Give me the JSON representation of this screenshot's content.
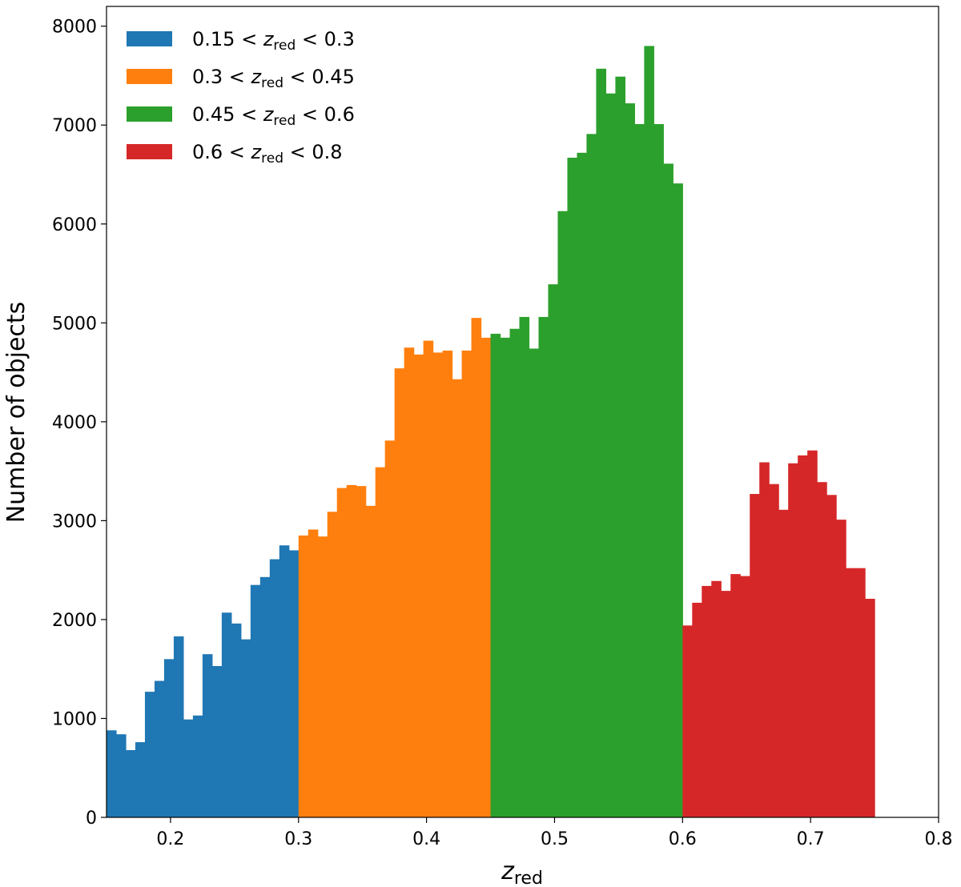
{
  "chart_data": {
    "type": "bar",
    "xlabel": "z",
    "xlabel_sub": "red",
    "ylabel": "Number of objects",
    "xlim": [
      0.15,
      0.8
    ],
    "ylim": [
      0,
      8200
    ],
    "xticks": [
      "0.2",
      "0.3",
      "0.4",
      "0.5",
      "0.6",
      "0.7",
      "0.8"
    ],
    "yticks": [
      "0",
      "1000",
      "2000",
      "3000",
      "4000",
      "5000",
      "6000",
      "7000",
      "8000"
    ],
    "bin_width": 0.0075,
    "legend_position": "top-left",
    "series": [
      {
        "name": "0.15 < z_red < 0.3",
        "label": {
          "lo": "0.15",
          "hi": "0.3",
          "var": "z",
          "sub": "red"
        },
        "color": "#1f77b4",
        "x_start": 0.15,
        "values": [
          880,
          840,
          680,
          760,
          1270,
          1380,
          1600,
          1830,
          990,
          1030,
          1650,
          1530,
          2070,
          1960,
          1800,
          2350,
          2430,
          2610,
          2750,
          2700
        ]
      },
      {
        "name": "0.3 < z_red < 0.45",
        "label": {
          "lo": "0.3",
          "hi": "0.45",
          "var": "z",
          "sub": "red"
        },
        "color": "#ff7f0e",
        "x_start": 0.3,
        "values": [
          2850,
          2910,
          2840,
          3090,
          3330,
          3360,
          3350,
          3150,
          3540,
          3810,
          4540,
          4750,
          4680,
          4820,
          4700,
          4720,
          4430,
          4720,
          5050,
          4850
        ]
      },
      {
        "name": "0.45 < z_red < 0.6",
        "label": {
          "lo": "0.45",
          "hi": "0.6",
          "var": "z",
          "sub": "red"
        },
        "color": "#2ca02c",
        "x_start": 0.45,
        "values": [
          4890,
          4850,
          4940,
          5060,
          4740,
          5060,
          5390,
          6130,
          6670,
          6720,
          6910,
          7570,
          7320,
          7490,
          7220,
          7010,
          7800,
          7010,
          6610,
          6410
        ]
      },
      {
        "name": "0.6 < z_red < 0.8",
        "label": {
          "lo": "0.6",
          "hi": "0.8",
          "var": "z",
          "sub": "red"
        },
        "color": "#d62728",
        "x_start": 0.6,
        "values": [
          1940,
          2170,
          2340,
          2390,
          2290,
          2460,
          2440,
          3270,
          3590,
          3370,
          3110,
          3580,
          3660,
          3710,
          3390,
          3260,
          3010,
          2520,
          2520,
          2210
        ]
      }
    ]
  }
}
